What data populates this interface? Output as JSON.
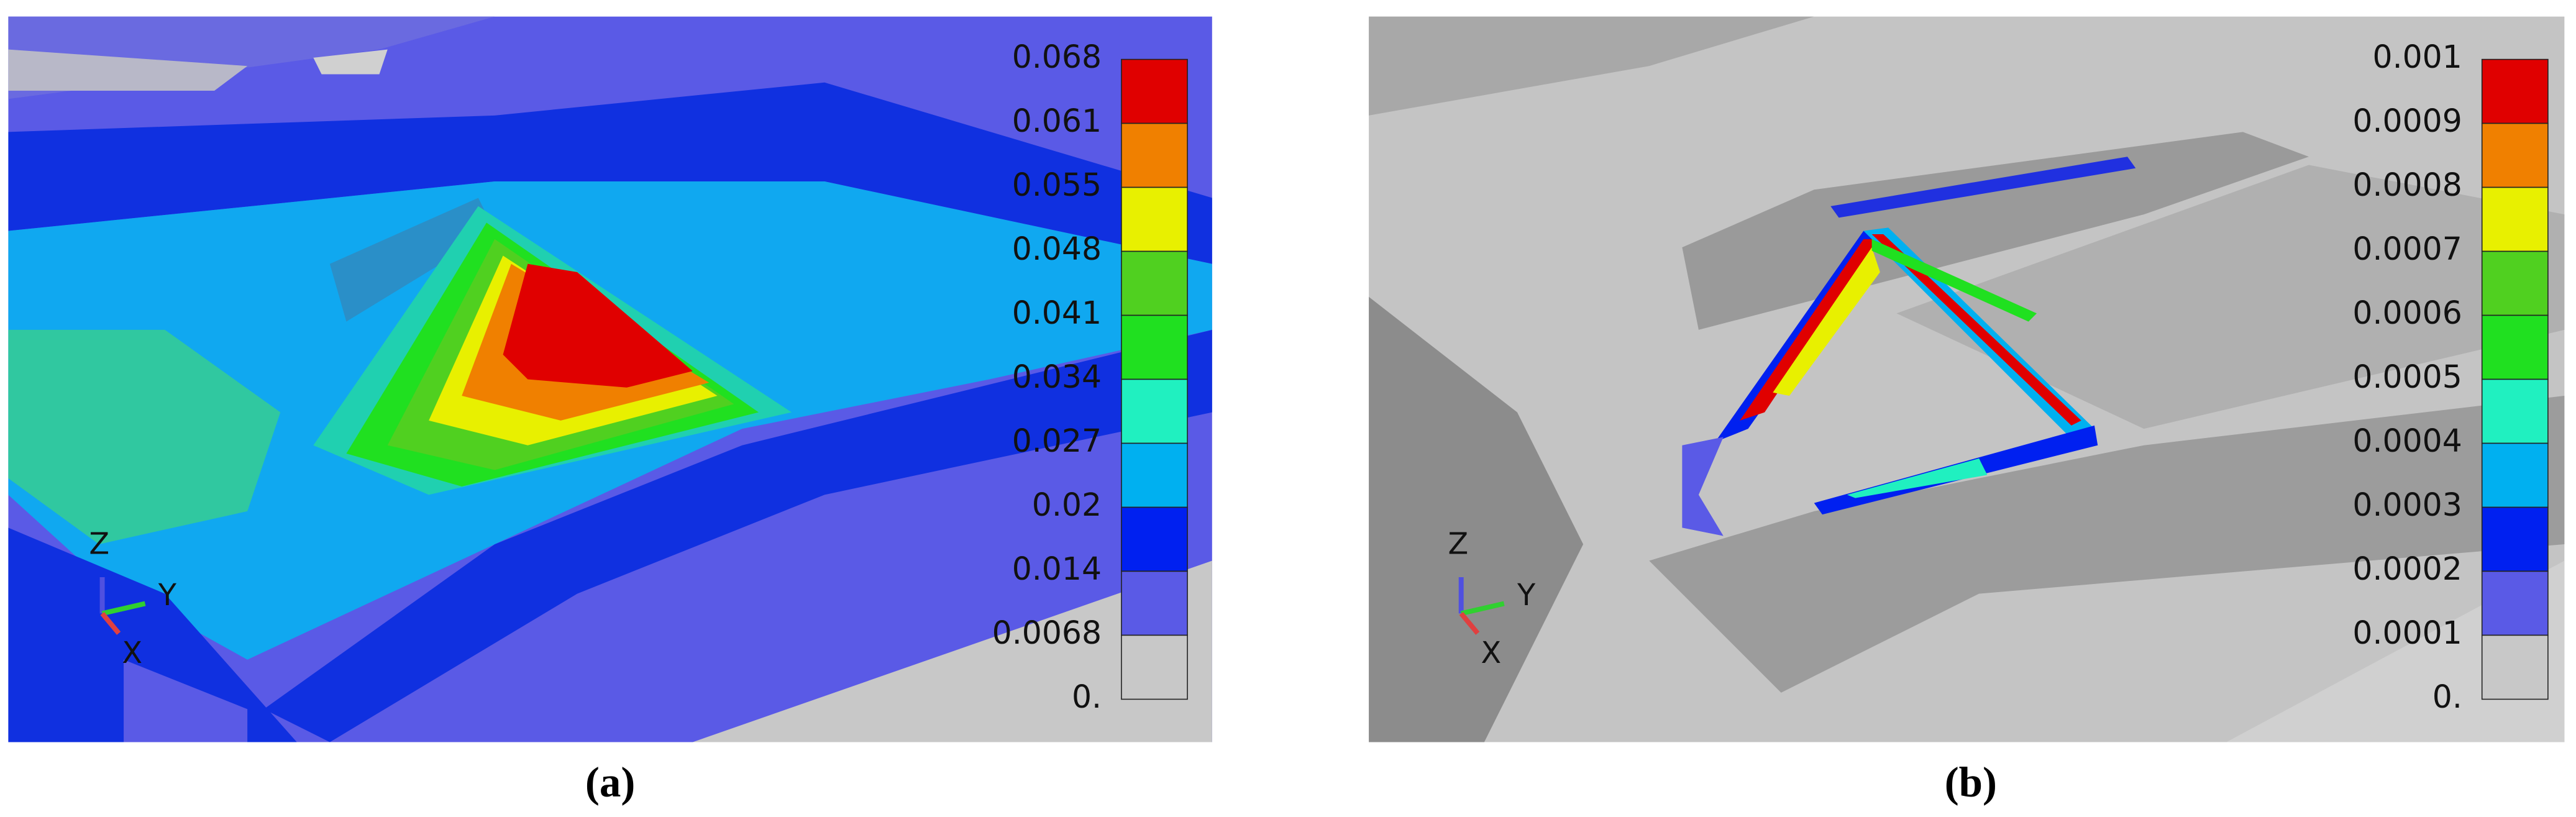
{
  "panels": [
    {
      "label": "(a)",
      "colorbar": {
        "labels": [
          "0.068",
          "0.061",
          "0.055",
          "0.048",
          "0.041",
          "0.034",
          "0.027",
          "0.02",
          "0.014",
          "0.0068",
          "0."
        ],
        "colors": [
          "#e00000",
          "#f08000",
          "#e8f000",
          "#50d020",
          "#20e020",
          "#20f0c0",
          "#00b0f0",
          "#0020f0",
          "#5a5ae6",
          "#c8c8c8"
        ]
      },
      "triad": {
        "z": "Z",
        "y": "Y",
        "x": "X"
      }
    },
    {
      "label": "(b)",
      "colorbar": {
        "labels": [
          "0.001",
          "0.0009",
          "0.0008",
          "0.0007",
          "0.0006",
          "0.0005",
          "0.0004",
          "0.0003",
          "0.0002",
          "0.0001",
          "0."
        ],
        "colors": [
          "#e00000",
          "#f08000",
          "#e8f000",
          "#50d020",
          "#20e020",
          "#20f0c0",
          "#00b0f0",
          "#0020f0",
          "#5a5ae6",
          "#c8c8c8"
        ]
      },
      "triad": {
        "z": "Z",
        "y": "Y",
        "x": "X"
      }
    }
  ]
}
